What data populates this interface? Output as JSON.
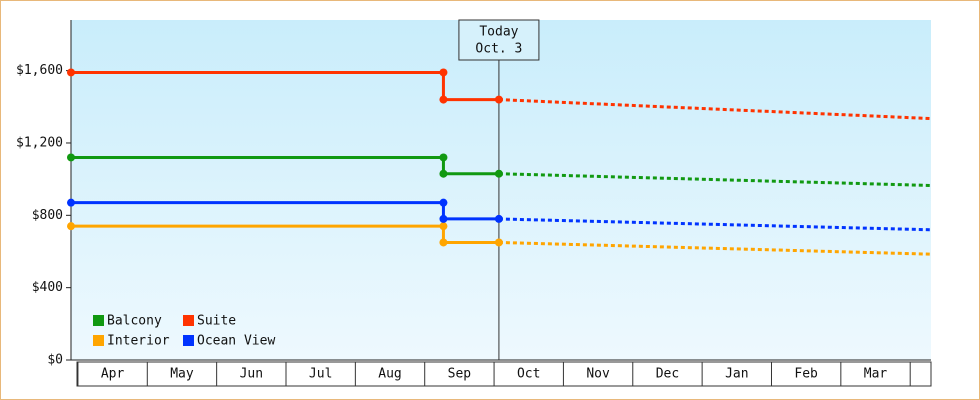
{
  "chart_data": {
    "type": "line",
    "xlim": [
      -0.1,
      12.3
    ],
    "xticks": [
      {
        "value": 0.5,
        "label": "Apr"
      },
      {
        "value": 1.5,
        "label": "May"
      },
      {
        "value": 2.5,
        "label": "Jun"
      },
      {
        "value": 3.5,
        "label": "Jul"
      },
      {
        "value": 4.5,
        "label": "Aug"
      },
      {
        "value": 5.5,
        "label": "Sep"
      },
      {
        "value": 6.5,
        "label": "Oct"
      },
      {
        "value": 7.5,
        "label": "Nov"
      },
      {
        "value": 8.5,
        "label": "Dec"
      },
      {
        "value": 9.5,
        "label": "Jan"
      },
      {
        "value": 10.5,
        "label": "Feb"
      },
      {
        "value": 11.5,
        "label": "Mar"
      }
    ],
    "ylim": [
      0,
      1880
    ],
    "yticks": [
      {
        "value": 0,
        "label": "$0"
      },
      {
        "value": 400,
        "label": "$400"
      },
      {
        "value": 800,
        "label": "$800"
      },
      {
        "value": 1200,
        "label": "$1,200"
      },
      {
        "value": 1600,
        "label": "$1,600"
      }
    ],
    "annotation": {
      "x": 6.07,
      "line1": "Today",
      "line2": "Oct. 3"
    },
    "legend": "lower left",
    "series": [
      {
        "name": "Balcony",
        "color": "#119911",
        "x": [
          -0.1,
          5.27,
          5.27,
          6.07
        ],
        "values": [
          1120,
          1120,
          1030,
          1030
        ],
        "forecast_x": [
          6.07,
          12.3
        ],
        "forecast_values": [
          1030,
          965
        ]
      },
      {
        "name": "Suite",
        "color": "#ff3300",
        "x": [
          -0.1,
          5.27,
          5.27,
          6.07
        ],
        "values": [
          1590,
          1590,
          1440,
          1440
        ],
        "forecast_x": [
          6.07,
          12.3
        ],
        "forecast_values": [
          1440,
          1335
        ]
      },
      {
        "name": "Interior",
        "color": "#ffa500",
        "x": [
          -0.1,
          5.27,
          5.27,
          6.07
        ],
        "values": [
          740,
          740,
          650,
          650
        ],
        "forecast_x": [
          6.07,
          12.3
        ],
        "forecast_values": [
          650,
          585
        ]
      },
      {
        "name": "Ocean View",
        "color": "#0033ff",
        "x": [
          -0.1,
          5.27,
          5.27,
          6.07
        ],
        "values": [
          870,
          870,
          780,
          780
        ],
        "forecast_x": [
          6.07,
          12.3
        ],
        "forecast_values": [
          780,
          720
        ]
      }
    ]
  }
}
